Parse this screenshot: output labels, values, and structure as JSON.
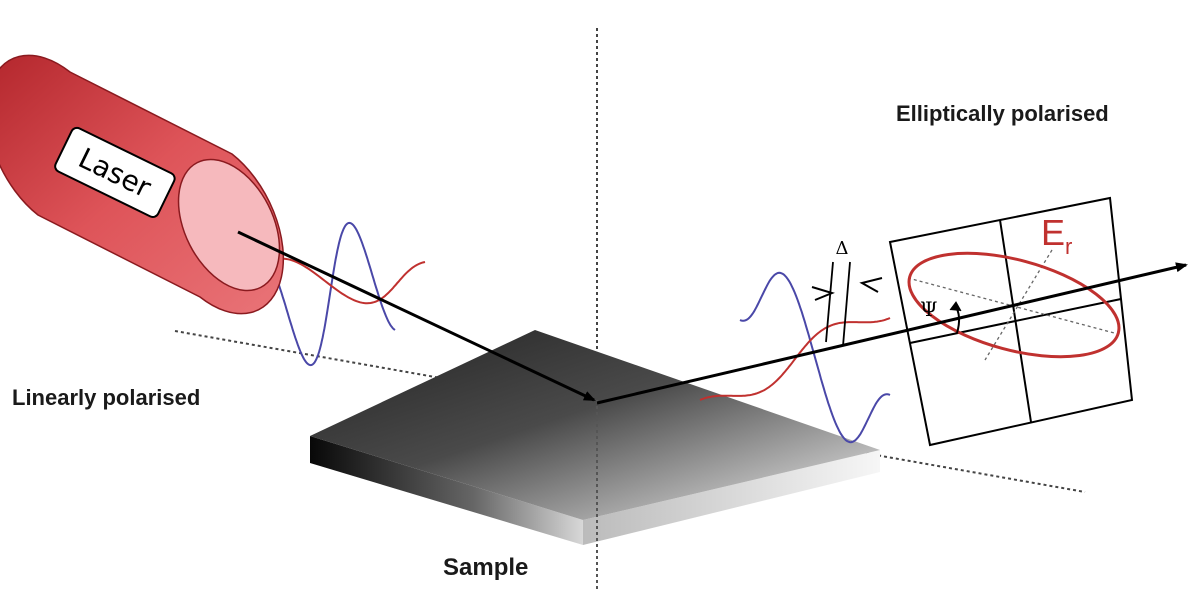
{
  "labels": {
    "laser": "Laser",
    "elliptically_polarised": "Elliptically polarised",
    "linearly_polarised": "Linearly polarised",
    "sample": "Sample",
    "field_main": "E",
    "field_sub": "r",
    "psi": "Ψ",
    "delta": "Δ"
  },
  "colors": {
    "laser_body": "#d9474c",
    "laser_face": "#f6b9bd",
    "wave_blue": "#4a48a8",
    "wave_red": "#c0312f",
    "ellipse": "#c0312f"
  }
}
